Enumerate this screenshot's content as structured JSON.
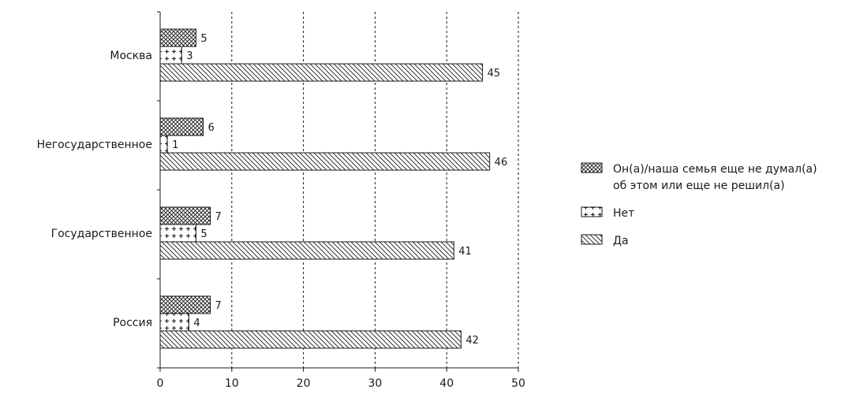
{
  "chart_data": {
    "type": "bar",
    "orientation": "horizontal",
    "categories": [
      "Москва",
      "Негосударственное",
      "Государственное",
      "Россия"
    ],
    "series": [
      {
        "name": "Он(а)/наша семья еще не думал(а) об этом или еще не решил(а)",
        "pattern": "crosshatch",
        "values": [
          5,
          6,
          7,
          7
        ]
      },
      {
        "name": "Нет",
        "pattern": "plus",
        "values": [
          3,
          1,
          5,
          4
        ]
      },
      {
        "name": "Да",
        "pattern": "diagonal",
        "values": [
          45,
          46,
          41,
          42
        ]
      }
    ],
    "legend": {
      "items": [
        {
          "lines": [
            "Он(а)/наша семья еще не думал(а)",
            "об этом или еще не решил(а)"
          ],
          "pattern": "crosshatch"
        },
        {
          "lines": [
            "Нет"
          ],
          "pattern": "plus"
        },
        {
          "lines": [
            "Да"
          ],
          "pattern": "diagonal"
        }
      ],
      "position": "right"
    },
    "xlim": [
      0,
      50
    ],
    "xticks": [
      0,
      10,
      20,
      30,
      40,
      50
    ],
    "grid": "vertical dashed",
    "title": "",
    "xlabel": "",
    "ylabel": "",
    "colors": {
      "stroke": "#1a1a1a",
      "background": "#ffffff"
    }
  }
}
